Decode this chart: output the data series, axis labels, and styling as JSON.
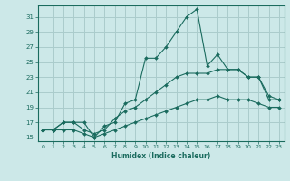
{
  "xlabel": "Humidex (Indice chaleur)",
  "bg_color": "#cce8e8",
  "grid_color": "#aacccc",
  "line_color": "#1a6b5e",
  "xlim": [
    -0.5,
    23.5
  ],
  "ylim": [
    14.5,
    32.5
  ],
  "xticks": [
    0,
    1,
    2,
    3,
    4,
    5,
    6,
    7,
    8,
    9,
    10,
    11,
    12,
    13,
    14,
    15,
    16,
    17,
    18,
    19,
    20,
    21,
    22,
    23
  ],
  "yticks": [
    15,
    17,
    19,
    21,
    23,
    25,
    27,
    29,
    31
  ],
  "line1_x": [
    0,
    1,
    2,
    3,
    4,
    5,
    6,
    7,
    8,
    9,
    10,
    11,
    12,
    13,
    14,
    15,
    16,
    17,
    18,
    19,
    20,
    21,
    22,
    23
  ],
  "line1_y": [
    16,
    16,
    17,
    17,
    17,
    15,
    16.5,
    17,
    19.5,
    20,
    25.5,
    25.5,
    27,
    29,
    31,
    32,
    24.5,
    26,
    24,
    24,
    23,
    23,
    20,
    20
  ],
  "line2_x": [
    0,
    1,
    2,
    3,
    4,
    5,
    6,
    7,
    8,
    9,
    10,
    11,
    12,
    13,
    14,
    15,
    16,
    17,
    18,
    19,
    20,
    21,
    22,
    23
  ],
  "line2_y": [
    16,
    16,
    17,
    17,
    16,
    15.5,
    16,
    17.5,
    18.5,
    19,
    20,
    21,
    22,
    23,
    23.5,
    23.5,
    23.5,
    24,
    24,
    24,
    23,
    23,
    20.5,
    20
  ],
  "line3_x": [
    0,
    1,
    2,
    3,
    4,
    5,
    6,
    7,
    8,
    9,
    10,
    11,
    12,
    13,
    14,
    15,
    16,
    17,
    18,
    19,
    20,
    21,
    22,
    23
  ],
  "line3_y": [
    16,
    16,
    16,
    16,
    15.5,
    15,
    15.5,
    16,
    16.5,
    17,
    17.5,
    18,
    18.5,
    19,
    19.5,
    20,
    20,
    20.5,
    20,
    20,
    20,
    19.5,
    19,
    19
  ]
}
